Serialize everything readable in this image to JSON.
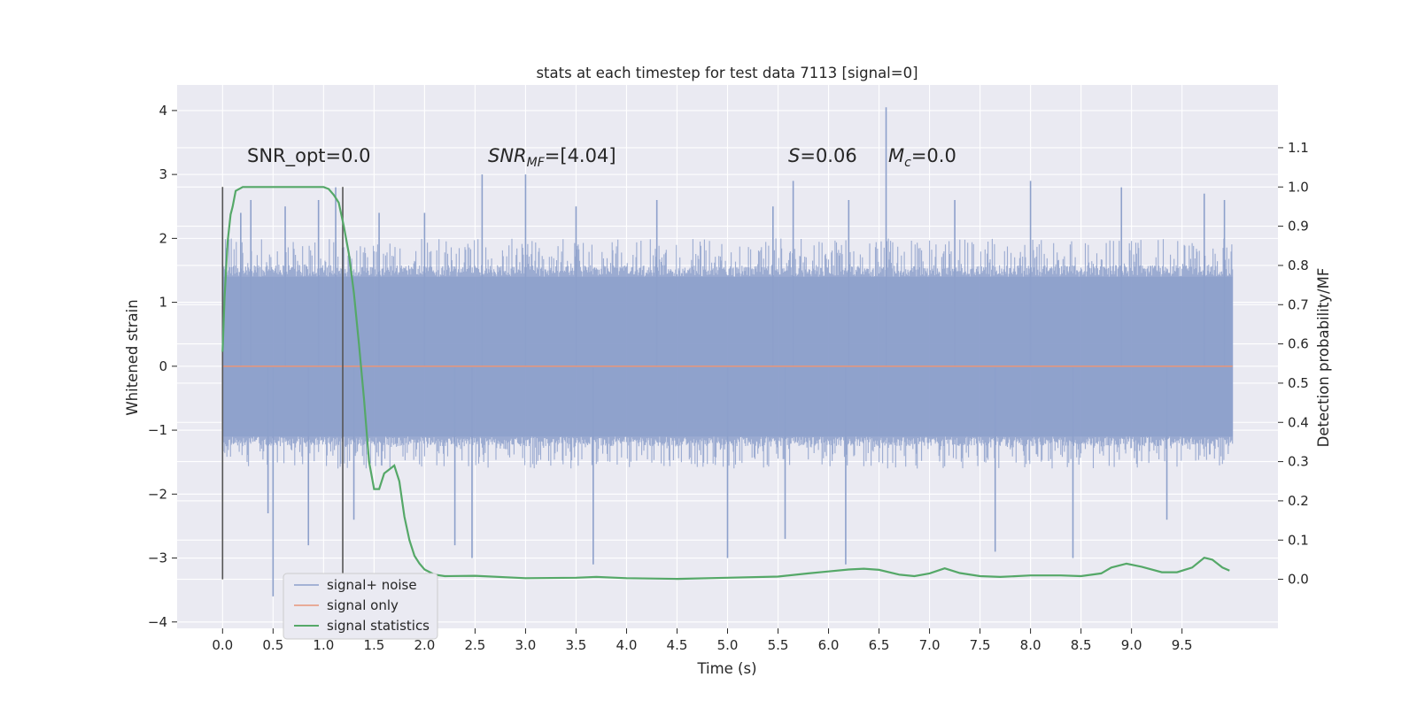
{
  "chart_data": {
    "type": "line",
    "title": "stats at each timestep for test data 7113 [signal=0]",
    "xlabel": "Time (s)",
    "ylabel": "Whitened strain",
    "y2label": "Detection probability/MF",
    "xlim": [
      -0.45,
      10.45
    ],
    "ylim": [
      -4.1,
      4.4
    ],
    "y2lim": [
      -0.125,
      1.26
    ],
    "xticks": [
      0.0,
      0.5,
      1.0,
      1.5,
      2.0,
      2.5,
      3.0,
      3.5,
      4.0,
      4.5,
      5.0,
      5.5,
      6.0,
      6.5,
      7.0,
      7.5,
      8.0,
      8.5,
      9.0,
      9.5
    ],
    "xtick_labels": [
      "0.0",
      "0.5",
      "1.0",
      "1.5",
      "2.0",
      "2.5",
      "3.0",
      "3.5",
      "4.0",
      "4.5",
      "5.0",
      "5.5",
      "6.0",
      "6.5",
      "7.0",
      "7.5",
      "8.0",
      "8.5",
      "9.0",
      "9.5"
    ],
    "yticks": [
      4,
      3,
      2,
      1,
      0,
      -1,
      -2,
      -3,
      -4
    ],
    "ytick_labels": [
      "4",
      "3",
      "2",
      "1",
      "0",
      "−1",
      "−2",
      "−3",
      "−4"
    ],
    "y2ticks": [
      1.1,
      1.0,
      0.9,
      0.8,
      0.7,
      0.6,
      0.5,
      0.4,
      0.3,
      0.2,
      0.1,
      0.0
    ],
    "y2tick_labels": [
      "1.1",
      "1.0",
      "0.9",
      "0.8",
      "0.7",
      "0.6",
      "0.5",
      "0.4",
      "0.3",
      "0.2",
      "0.1",
      "0.0"
    ],
    "grid": true,
    "legend_position": "lower-left",
    "annotations": {
      "snr_opt": "SNR_opt=0.0",
      "snr_mf_main": "SNR",
      "snr_mf_sub": "MF",
      "snr_mf_value": "=[4.04]",
      "s_main": "S",
      "s_value": "=0.06",
      "mc_main": "M",
      "mc_sub": "c",
      "mc_value": "=0.0"
    },
    "vlines": [
      {
        "x": 0.0,
        "y2range": [
          0.0,
          1.0
        ]
      },
      {
        "x": 1.19,
        "y2range": [
          0.0,
          1.0
        ]
      }
    ],
    "series": [
      {
        "name": "signal+ noise",
        "color": "#8da0cb",
        "axis": "left",
        "x_range": [
          0.0,
          10.0
        ],
        "envelope": {
          "typical_upper": 1.4,
          "typical_lower": -1.1,
          "max_upper": 2.0,
          "max_lower": -1.6
        },
        "spikes": [
          {
            "x": 0.18,
            "y": 2.4
          },
          {
            "x": 0.28,
            "y": 2.6
          },
          {
            "x": 0.45,
            "y": -2.3
          },
          {
            "x": 0.5,
            "y": -3.6
          },
          {
            "x": 0.62,
            "y": 2.5
          },
          {
            "x": 0.85,
            "y": -2.8
          },
          {
            "x": 0.95,
            "y": 2.6
          },
          {
            "x": 1.12,
            "y": 2.8
          },
          {
            "x": 1.3,
            "y": -2.4
          },
          {
            "x": 1.55,
            "y": 2.4
          },
          {
            "x": 2.0,
            "y": 2.4
          },
          {
            "x": 2.3,
            "y": -2.8
          },
          {
            "x": 2.47,
            "y": -3.0
          },
          {
            "x": 2.57,
            "y": 3.0
          },
          {
            "x": 3.0,
            "y": 3.0
          },
          {
            "x": 3.5,
            "y": 2.5
          },
          {
            "x": 3.67,
            "y": -3.1
          },
          {
            "x": 4.3,
            "y": 2.6
          },
          {
            "x": 5.0,
            "y": -3.0
          },
          {
            "x": 5.45,
            "y": 2.5
          },
          {
            "x": 5.57,
            "y": -2.7
          },
          {
            "x": 5.65,
            "y": 2.9
          },
          {
            "x": 6.17,
            "y": -3.1
          },
          {
            "x": 6.2,
            "y": 2.6
          },
          {
            "x": 6.57,
            "y": 4.05
          },
          {
            "x": 7.25,
            "y": 2.6
          },
          {
            "x": 7.65,
            "y": -2.9
          },
          {
            "x": 8.0,
            "y": 2.9
          },
          {
            "x": 8.42,
            "y": -3.0
          },
          {
            "x": 8.9,
            "y": 2.8
          },
          {
            "x": 9.35,
            "y": -2.4
          },
          {
            "x": 9.72,
            "y": 2.7
          },
          {
            "x": 9.92,
            "y": 2.6
          }
        ]
      },
      {
        "name": "signal only",
        "color": "#e8967a",
        "axis": "left",
        "x": [
          0.0,
          10.0
        ],
        "y": [
          0.0,
          0.0
        ]
      },
      {
        "name": "signal statistics",
        "color": "#55a868",
        "axis": "right",
        "x": [
          0.0,
          0.02,
          0.05,
          0.08,
          0.1,
          0.13,
          0.2,
          0.3,
          0.5,
          0.8,
          1.0,
          1.05,
          1.1,
          1.15,
          1.2,
          1.25,
          1.3,
          1.35,
          1.4,
          1.45,
          1.5,
          1.55,
          1.6,
          1.65,
          1.7,
          1.75,
          1.8,
          1.85,
          1.9,
          1.95,
          2.0,
          2.1,
          2.2,
          2.5,
          3.0,
          3.5,
          3.7,
          4.0,
          4.5,
          5.0,
          5.5,
          5.8,
          6.0,
          6.2,
          6.35,
          6.5,
          6.7,
          6.85,
          7.0,
          7.15,
          7.3,
          7.5,
          7.7,
          8.0,
          8.3,
          8.5,
          8.7,
          8.8,
          8.95,
          9.1,
          9.3,
          9.45,
          9.6,
          9.72,
          9.8,
          9.9,
          9.97
        ],
        "y": [
          0.58,
          0.72,
          0.86,
          0.93,
          0.95,
          0.99,
          1.0,
          1.0,
          1.0,
          1.0,
          1.0,
          0.995,
          0.98,
          0.96,
          0.9,
          0.83,
          0.73,
          0.6,
          0.46,
          0.3,
          0.23,
          0.23,
          0.27,
          0.28,
          0.29,
          0.25,
          0.16,
          0.1,
          0.06,
          0.04,
          0.025,
          0.012,
          0.008,
          0.009,
          0.003,
          0.004,
          0.006,
          0.003,
          0.001,
          0.004,
          0.007,
          0.015,
          0.02,
          0.025,
          0.027,
          0.024,
          0.012,
          0.008,
          0.015,
          0.028,
          0.016,
          0.008,
          0.006,
          0.01,
          0.01,
          0.008,
          0.015,
          0.03,
          0.04,
          0.032,
          0.018,
          0.018,
          0.03,
          0.055,
          0.05,
          0.03,
          0.022
        ]
      }
    ]
  }
}
